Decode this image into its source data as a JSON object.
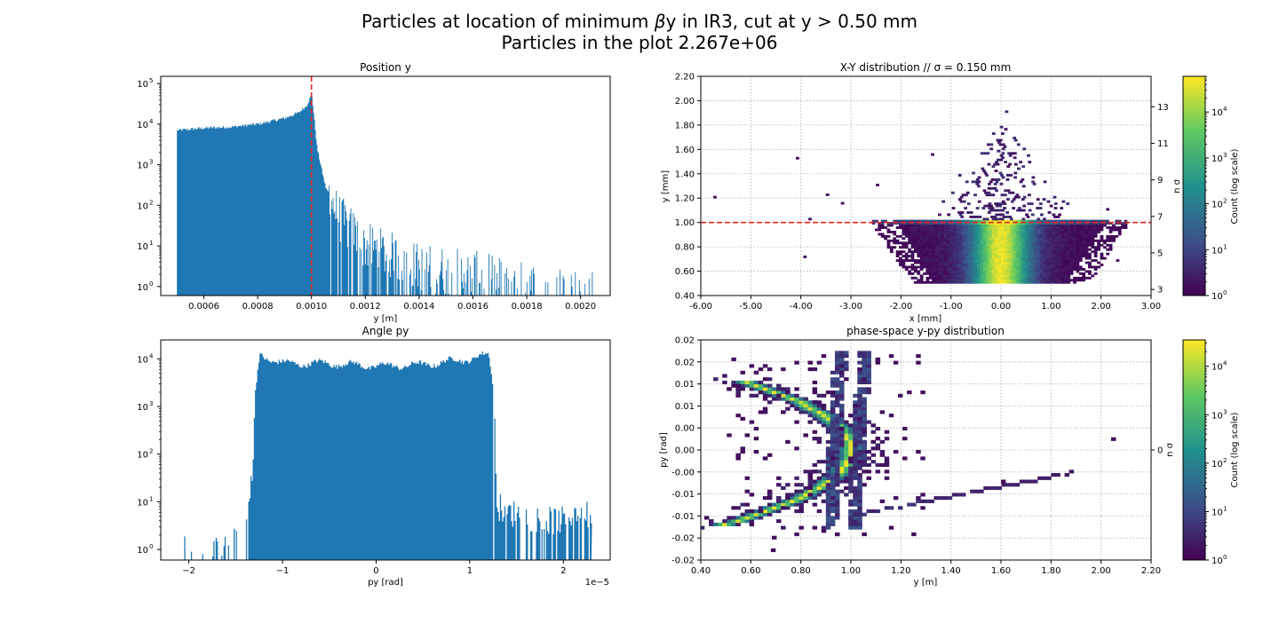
{
  "suptitle": {
    "line1_prefix": "Particles at location of minimum ",
    "line1_beta": "β",
    "line1_suffix": "y in IR3, cut at y > 0.50 mm",
    "line2": "Particles in the plot 2.267e+06"
  },
  "colors": {
    "hist": "#1f77b4",
    "cut_line": "#e8251f",
    "grid": "#b0b0b0",
    "viridis": [
      "#440154",
      "#3b528b",
      "#21918c",
      "#5ec962",
      "#fde725"
    ]
  },
  "chart_data": [
    {
      "type": "histogram",
      "title": "Position y",
      "xlabel": "y [m]",
      "ylabel": "",
      "xlim": [
        0.00044,
        0.00211
      ],
      "ylim": [
        0.6,
        150000
      ],
      "yscale": "log",
      "grid": false,
      "xticks": [
        "0.0006",
        "0.0008",
        "0.0010",
        "0.0012",
        "0.0014",
        "0.0016",
        "0.0018",
        "0.0020"
      ],
      "xtick_values": [
        0.0006,
        0.0008,
        0.001,
        0.0012,
        0.0014,
        0.0016,
        0.0018,
        0.002
      ],
      "yticks": [
        "10",
        "10",
        "10",
        "10",
        "10",
        "10"
      ],
      "ytick_exponents": [
        "0",
        "1",
        "2",
        "3",
        "4",
        "5"
      ],
      "ytick_values": [
        1,
        10,
        100,
        1000,
        10000,
        100000
      ],
      "profile_x": [
        0.0005,
        0.0006,
        0.0007,
        0.0008,
        0.0009,
        0.00095,
        0.00098,
        0.001,
        0.00102,
        0.00105,
        0.0011,
        0.0012,
        0.0014,
        0.0016,
        0.0018,
        0.00205
      ],
      "profile_counts": [
        7000,
        8000,
        8500,
        10000,
        14000,
        19000,
        28000,
        55000,
        2500,
        300,
        50,
        10,
        3,
        2,
        1,
        1
      ],
      "cut_line_x": 0.001
    },
    {
      "type": "heatmap",
      "title": "X-Y distribution   //   σ = 0.150 mm",
      "xlabel": "x [mm]",
      "ylabel": "y [mm]",
      "right_label": "n σ",
      "colorbar_label": "Count (log scale)",
      "xlim": [
        -6.0,
        3.0
      ],
      "ylim": [
        0.4,
        2.2
      ],
      "grid": true,
      "xticks": [
        "-6.00",
        "-5.00",
        "-4.00",
        "-3.00",
        "-2.00",
        "-1.00",
        "0.00",
        "1.00",
        "2.00",
        "3.00"
      ],
      "xtick_values": [
        -6,
        -5,
        -4,
        -3,
        -2,
        -1,
        0,
        1,
        2,
        3
      ],
      "yticks": [
        "0.40",
        "0.60",
        "0.80",
        "1.00",
        "1.20",
        "1.40",
        "1.60",
        "1.80",
        "2.00",
        "2.20"
      ],
      "ytick_values": [
        0.4,
        0.6,
        0.8,
        1.0,
        1.2,
        1.4,
        1.6,
        1.8,
        2.0,
        2.2
      ],
      "right_ticks": [
        "3",
        "5",
        "7",
        "9",
        "11",
        "13"
      ],
      "right_tick_values": [
        3,
        5,
        7,
        9,
        11,
        13
      ],
      "right_scale": 0.15,
      "cut_line_y": 1.0,
      "colorbar_ticks": [
        "10",
        "10",
        "10",
        "10",
        "10"
      ],
      "colorbar_exponents": [
        "0",
        "1",
        "2",
        "3",
        "4"
      ],
      "colorbar_max": 60000
    },
    {
      "type": "histogram",
      "title": "Angle py",
      "xlabel": "py [rad]",
      "ylabel": "",
      "offset_text": "1e−5",
      "xlim": [
        -2.3,
        2.5
      ],
      "ylim": [
        0.6,
        25000
      ],
      "yscale": "log",
      "grid": false,
      "xticks": [
        "−2",
        "−1",
        "0",
        "1",
        "2"
      ],
      "xtick_values": [
        -2,
        -1,
        0,
        1,
        2
      ],
      "yticks": [
        "10",
        "10",
        "10",
        "10",
        "10"
      ],
      "ytick_exponents": [
        "0",
        "1",
        "2",
        "3",
        "4"
      ],
      "ytick_values": [
        1,
        10,
        100,
        1000,
        10000
      ],
      "profile_x": [
        -2.05,
        -1.6,
        -1.45,
        -1.38,
        -1.33,
        -1.3,
        -1.25,
        -1.0,
        -0.5,
        0,
        0.5,
        1.0,
        1.2,
        1.25,
        1.28,
        1.3,
        1.4,
        1.6,
        1.8,
        2.0,
        2.1,
        2.2,
        2.3
      ],
      "profile_counts": [
        1,
        1,
        2,
        5,
        30,
        1500,
        12000,
        8000,
        8000,
        7000,
        7500,
        10000,
        12000,
        2000,
        20,
        8,
        6,
        5,
        4,
        4,
        6,
        8,
        4
      ]
    },
    {
      "type": "heatmap",
      "title": "phase-space y-py distribution",
      "xlabel": "y [m]",
      "ylabel": "py [rad]",
      "right_label": "n σ",
      "colorbar_label": "Count (log scale)",
      "xlim": [
        0.4,
        2.2
      ],
      "ylim": [
        -0.02,
        0.02
      ],
      "grid": true,
      "xticks": [
        "0.40",
        "0.60",
        "0.80",
        "1.00",
        "1.20",
        "1.40",
        "1.60",
        "1.80",
        "2.00",
        "2.20"
      ],
      "xtick_values": [
        0.4,
        0.6,
        0.8,
        1.0,
        1.2,
        1.4,
        1.6,
        1.8,
        2.0,
        2.2
      ],
      "yticks": [
        "-0.02",
        "-0.02",
        "-0.01",
        "-0.01",
        "-0.00",
        "0.00",
        "0.00",
        "0.01",
        "0.01",
        "0.02",
        "0.02"
      ],
      "ytick_values": [
        -0.02,
        -0.016,
        -0.012,
        -0.008,
        -0.004,
        0,
        0.004,
        0.008,
        0.012,
        0.016,
        0.02
      ],
      "right_ticks": [
        "0"
      ],
      "right_tick_values": [
        0
      ],
      "colorbar_ticks": [
        "10",
        "10",
        "10",
        "10",
        "10"
      ],
      "colorbar_exponents": [
        "0",
        "1",
        "2",
        "3",
        "4"
      ],
      "colorbar_max": 35000
    }
  ]
}
